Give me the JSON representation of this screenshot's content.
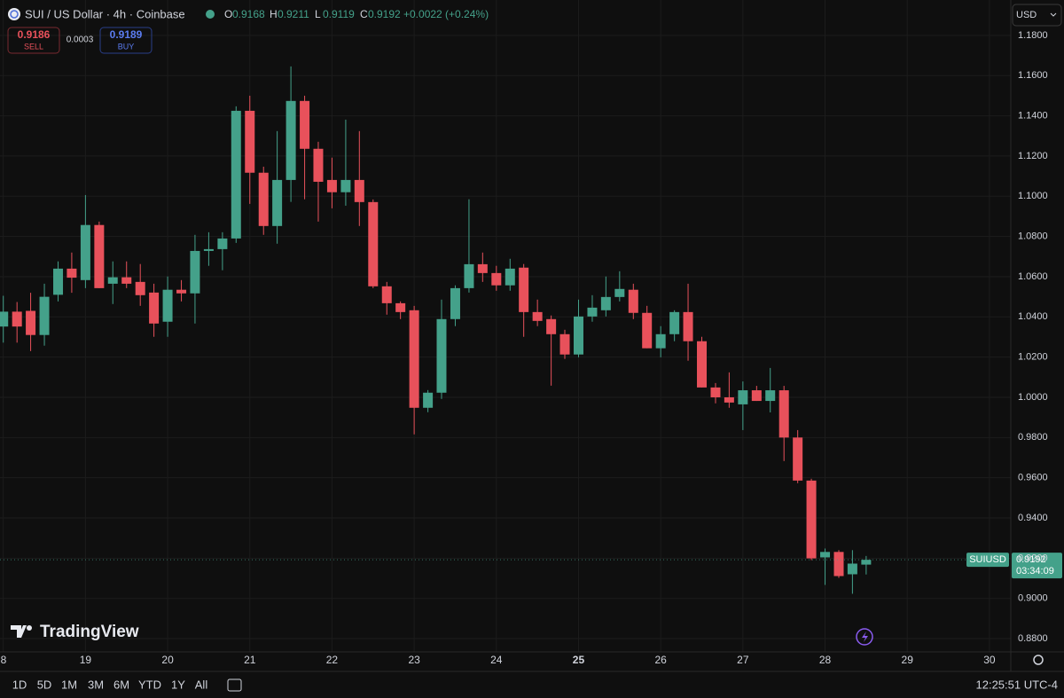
{
  "header": {
    "symbol": "SUI / US Dollar · 4h · Coinbase",
    "ohlc_labels": [
      "O",
      "H",
      "L",
      "C"
    ],
    "change": "+0.0022 (+0.24%)"
  },
  "trade": {
    "sell_price": "0.9186",
    "sell_label": "SELL",
    "spread": "0.0003",
    "buy_price": "0.9189",
    "buy_label": "BUY"
  },
  "currency": "USD",
  "price_tag": {
    "symbol": "SUIUSD",
    "countdown": "03:34:09"
  },
  "brand": "TradingView",
  "toolbar": {
    "ranges": [
      "1D",
      "5D",
      "1M",
      "3M",
      "6M",
      "YTD",
      "1Y",
      "All"
    ],
    "clock": "12:25:51 UTC-4"
  },
  "chart_data": {
    "type": "candlestick",
    "x": [
      18,
      18.167,
      18.333,
      18.5,
      18.667,
      18.833,
      19,
      19.167,
      19.333,
      19.5,
      19.667,
      19.833,
      20,
      20.167,
      20.333,
      20.5,
      20.667,
      20.833,
      21,
      21.167,
      21.333,
      21.5,
      21.667,
      21.833,
      22,
      22.167,
      22.333,
      22.5,
      22.667,
      22.833,
      23,
      23.167,
      23.333,
      23.5,
      23.667,
      23.833,
      24,
      24.167,
      24.333,
      24.5,
      24.667,
      24.833,
      25,
      25.167,
      25.333,
      25.5,
      25.667,
      25.833,
      26,
      26.167,
      26.333,
      26.5,
      26.667,
      26.833,
      27,
      27.167,
      27.333,
      27.5,
      27.667,
      27.833,
      28,
      28.167,
      28.333,
      28.5
    ],
    "open": [
      1.0352,
      1.0426,
      1.043,
      1.031,
      1.051,
      1.064,
      1.0583,
      1.0857,
      1.0565,
      1.0597,
      1.0574,
      1.0521,
      1.0376,
      1.0535,
      1.0517,
      1.0728,
      1.0737,
      1.079,
      1.1425,
      1.1117,
      1.0852,
      1.1081,
      1.1474,
      1.1236,
      1.1081,
      1.102,
      1.1081,
      1.0971,
      1.0552,
      1.0468,
      1.0433,
      0.9948,
      1.0023,
      1.0389,
      1.0543,
      1.0662,
      1.0618,
      1.0557,
      1.0645,
      1.0424,
      1.0389,
      1.0314,
      1.0213,
      1.0402,
      1.0433,
      1.0499,
      1.0535,
      1.042,
      1.0244,
      1.0314,
      1.0424,
      1.0279,
      1.0049,
      1.0,
      0.9965,
      1.0035,
      0.9982,
      1.0035,
      0.98,
      0.9586,
      0.9204,
      0.9231,
      0.912,
      0.9168
    ],
    "high": [
      1.0505,
      1.0474,
      1.052,
      1.0565,
      1.0676,
      1.072,
      1.1006,
      1.0874,
      1.0676,
      1.0676,
      1.0663,
      1.0565,
      1.0601,
      1.0583,
      1.0808,
      1.0821,
      1.0821,
      1.1447,
      1.15,
      1.1147,
      1.1324,
      1.1646,
      1.15,
      1.1271,
      1.1192,
      1.1381,
      1.1324,
      1.0984,
      1.0574,
      1.0477,
      1.0455,
      1.0036,
      1.0486,
      1.0557,
      1.0985,
      1.072,
      1.0654,
      1.0689,
      1.0663,
      1.0486,
      1.0407,
      1.0336,
      1.0486,
      1.0508,
      1.0601,
      1.0627,
      1.0565,
      1.0455,
      1.0354,
      1.0433,
      1.0565,
      1.0301,
      1.0071,
      1.0124,
      1.0079,
      1.0057,
      1.0146,
      1.0057,
      0.9837,
      0.9595,
      0.9248,
      0.924,
      0.924,
      0.9211
    ],
    "low": [
      1.0272,
      1.0272,
      1.023,
      1.0257,
      1.0477,
      1.052,
      1.0543,
      1.0543,
      1.0464,
      1.0543,
      1.0455,
      1.0301,
      1.0301,
      1.0477,
      1.0367,
      1.0654,
      1.0632,
      1.0768,
      1.0962,
      1.0808,
      1.0764,
      1.0972,
      1.0985,
      1.0874,
      1.094,
      1.0953,
      1.0852,
      1.0543,
      1.0411,
      1.0389,
      0.9816,
      0.9926,
      0.9992,
      1.0354,
      1.0521,
      1.0574,
      1.053,
      1.053,
      1.0301,
      1.0354,
      1.0058,
      1.0191,
      1.0199,
      1.0376,
      1.0402,
      1.0477,
      1.0389,
      1.0244,
      1.0199,
      1.0279,
      1.0182,
      1.0049,
      0.997,
      0.9948,
      0.9837,
      0.9982,
      0.9925,
      0.9683,
      0.9573,
      0.919,
      0.9067,
      0.9102,
      0.9023,
      0.9119
    ],
    "close": [
      1.0426,
      1.0352,
      1.031,
      1.05,
      1.064,
      1.0595,
      1.0857,
      1.0543,
      1.0597,
      1.0565,
      1.0508,
      1.0367,
      1.0535,
      1.0517,
      1.0728,
      1.0737,
      1.079,
      1.1425,
      1.1117,
      1.0852,
      1.1081,
      1.1474,
      1.1236,
      1.1072,
      1.102,
      1.1081,
      1.0971,
      1.0552,
      1.0468,
      1.0424,
      0.9948,
      1.0023,
      1.0389,
      1.0543,
      1.0662,
      1.0618,
      1.0557,
      1.064,
      1.0424,
      1.038,
      1.0314,
      1.0213,
      1.0402,
      1.0446,
      1.0499,
      1.0539,
      1.042,
      1.0244,
      1.0314,
      1.0424,
      1.0279,
      1.0049,
      1.0,
      0.9974,
      1.0035,
      0.9982,
      1.0035,
      0.98,
      0.9586,
      0.9199,
      0.9231,
      0.9111,
      0.9173,
      0.9192
    ],
    "up_color": "#44a18a",
    "down_color": "#e8515b",
    "xlim": [
      17.96,
      30.26
    ],
    "xticks": [
      {
        "value": 18,
        "label": "8"
      },
      19,
      20,
      21,
      22,
      23,
      24,
      25,
      26,
      27,
      28,
      29,
      30
    ],
    "ylim": [
      0.8734,
      1.1976
    ],
    "yticks": [
      {
        "value": 0.88,
        "label": "0.8800"
      },
      {
        "value": 0.9,
        "label": "0.9000"
      },
      {
        "value": 0.92,
        "label": "0.9200"
      },
      {
        "value": 0.94,
        "label": "0.9400"
      },
      {
        "value": 0.96,
        "label": "0.9600"
      },
      {
        "value": 0.98,
        "label": "0.9800"
      },
      {
        "value": 1.0,
        "label": "1.0000"
      },
      {
        "value": 1.02,
        "label": "1.0200"
      },
      {
        "value": 1.04,
        "label": "1.0400"
      },
      {
        "value": 1.06,
        "label": "1.0600"
      },
      {
        "value": 1.08,
        "label": "1.0800"
      },
      {
        "value": 1.1,
        "label": "1.1000"
      },
      {
        "value": 1.12,
        "label": "1.1200"
      },
      {
        "value": 1.14,
        "label": "1.1400"
      },
      {
        "value": 1.16,
        "label": "1.1600"
      },
      {
        "value": 1.18,
        "label": "1.1800"
      }
    ],
    "grid": true
  }
}
